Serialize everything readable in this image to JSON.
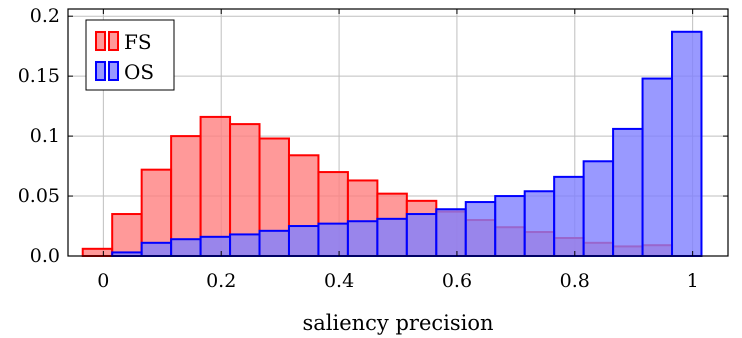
{
  "chart_data": {
    "type": "bar",
    "title": "",
    "xlabel": "saliency precision",
    "ylabel": "",
    "xlim": [
      -0.06,
      1.06
    ],
    "ylim": [
      0,
      0.206
    ],
    "grid": true,
    "legend_position": "top-left",
    "x_ticks": [
      0,
      0.2,
      0.4,
      0.6,
      0.8,
      1
    ],
    "x_tick_labels": [
      "0",
      "0.2",
      "0.4",
      "0.6",
      "0.8",
      "1"
    ],
    "y_ticks": [
      0,
      0.05,
      0.1,
      0.15,
      0.2
    ],
    "y_tick_labels": [
      "0.0",
      "0.05",
      "0.1",
      "0.15",
      "0.2"
    ],
    "bin_width": 0.05,
    "series": [
      {
        "name": "FS",
        "fill": "#ff8080",
        "stroke": "#ff0000",
        "x": [
          -0.01,
          0.04,
          0.09,
          0.14,
          0.19,
          0.24,
          0.29,
          0.34,
          0.39,
          0.44,
          0.49,
          0.54,
          0.59,
          0.64,
          0.69,
          0.74,
          0.79,
          0.84,
          0.89,
          0.94
        ],
        "values": [
          0.006,
          0.035,
          0.072,
          0.1,
          0.116,
          0.11,
          0.098,
          0.084,
          0.07,
          0.063,
          0.052,
          0.046,
          0.037,
          0.03,
          0.024,
          0.02,
          0.015,
          0.011,
          0.008,
          0.009
        ]
      },
      {
        "name": "OS",
        "fill": "#8080ff",
        "stroke": "#0000ff",
        "x": [
          0.04,
          0.09,
          0.14,
          0.19,
          0.24,
          0.29,
          0.34,
          0.39,
          0.44,
          0.49,
          0.54,
          0.59,
          0.64,
          0.69,
          0.74,
          0.79,
          0.84,
          0.89,
          0.94,
          0.99
        ],
        "values": [
          0.003,
          0.011,
          0.014,
          0.016,
          0.018,
          0.021,
          0.025,
          0.027,
          0.029,
          0.031,
          0.035,
          0.039,
          0.045,
          0.05,
          0.054,
          0.066,
          0.079,
          0.106,
          0.148,
          0.187
        ]
      }
    ]
  }
}
